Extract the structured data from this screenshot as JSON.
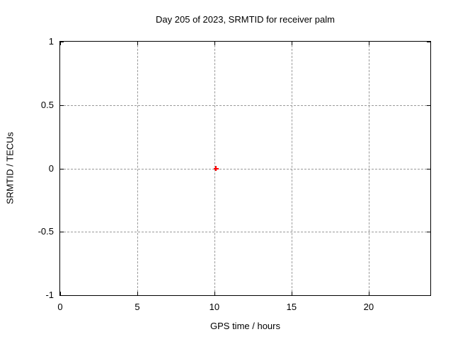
{
  "chart_data": {
    "type": "scatter",
    "title": "Day 205 of 2023, SRMTID for receiver palm",
    "xlabel": "GPS time / hours",
    "ylabel": "SRMTID / TECUs",
    "xlim": [
      0,
      24
    ],
    "ylim": [
      -1,
      1
    ],
    "xticks": [
      0,
      5,
      10,
      15,
      20
    ],
    "yticks": [
      -1,
      -0.5,
      0,
      0.5,
      1
    ],
    "grid": true,
    "legend": "none",
    "series": [
      {
        "name": "SRMTID",
        "marker": "plus",
        "color": "#ff0000",
        "points": [
          {
            "x": 10.1,
            "y": 0.0
          }
        ]
      }
    ]
  },
  "colors": {
    "background": "#ffffff",
    "axis": "#000000",
    "text": "#000000",
    "grid": "#9a9a9a",
    "marker": "#ff0000"
  }
}
